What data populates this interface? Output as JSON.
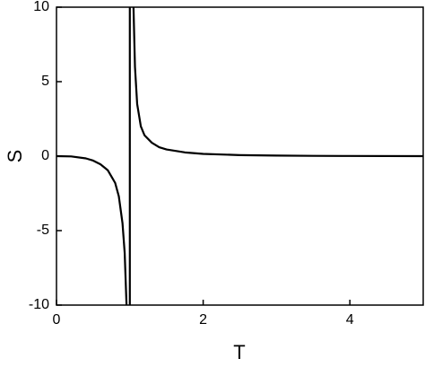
{
  "chart_data": {
    "type": "line",
    "x_label": "T",
    "y_label": "S",
    "x": [
      0,
      0.2,
      0.4,
      0.5,
      0.6,
      0.7,
      0.8,
      0.85,
      0.9,
      0.93,
      0.955,
      null,
      1.05,
      1.07,
      1.1,
      1.15,
      1.2,
      1.3,
      1.4,
      1.5,
      1.75,
      2,
      2.5,
      3,
      3.5,
      4,
      5,
      null,
      1,
      1
    ],
    "series": [
      {
        "color": "#000000",
        "values": [
          0,
          -0.02,
          -0.15,
          -0.3,
          -0.55,
          -0.95,
          -1.8,
          -2.7,
          -4.5,
          -6.5,
          -10,
          null,
          10,
          6,
          3.5,
          2,
          1.4,
          0.9,
          0.6,
          0.45,
          0.25,
          0.15,
          0.07,
          0.04,
          0.02,
          0.01,
          0,
          null,
          -10,
          10
        ]
      }
    ],
    "xlim": [
      0,
      5
    ],
    "xticks": [
      0,
      2,
      4
    ],
    "ylim": [
      -10,
      10
    ],
    "yticks": [
      -10,
      -5,
      0,
      5,
      10
    ],
    "grid": false
  }
}
